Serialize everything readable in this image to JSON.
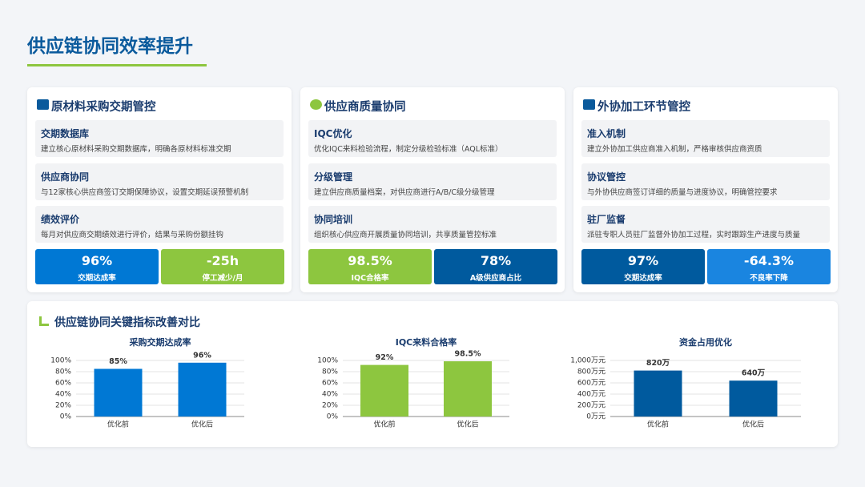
{
  "header": {
    "title": "供应链协同效率提升"
  },
  "cards": [
    {
      "title": "原材料采购交期管控",
      "items": [
        {
          "title": "交期数据库",
          "desc": "建立核心原材料采购交期数据库，明确各原材料标准交期"
        },
        {
          "title": "供应商协同",
          "desc": "与12家核心供应商签订交期保障协议，设置交期延误预警机制"
        },
        {
          "title": "绩效评价",
          "desc": "每月对供应商交期绩效进行评价，结果与采购份额挂钩"
        }
      ],
      "metrics": [
        {
          "value": "96%",
          "label": "交期达成率",
          "color": "#0078d4"
        },
        {
          "value": "-25h",
          "label": "停工减少/月",
          "color": "#8dc63f"
        }
      ]
    },
    {
      "title": "供应商质量协同",
      "items": [
        {
          "title": "IQC优化",
          "desc": "优化IQC来料检验流程，制定分级检验标准（AQL标准）"
        },
        {
          "title": "分级管理",
          "desc": "建立供应商质量档案，对供应商进行A/B/C级分级管理"
        },
        {
          "title": "协同培训",
          "desc": "组织核心供应商开展质量协同培训，共享质量管控标准"
        }
      ],
      "metrics": [
        {
          "value": "98.5%",
          "label": "IQC合格率",
          "color": "#8dc63f"
        },
        {
          "value": "78%",
          "label": "A级供应商占比",
          "color": "#005a9e"
        }
      ]
    },
    {
      "title": "外协加工环节管控",
      "items": [
        {
          "title": "准入机制",
          "desc": "建立外协加工供应商准入机制，严格审核供应商资质"
        },
        {
          "title": "协议管控",
          "desc": "与外协供应商签订详细的质量与进度协议，明确管控要求"
        },
        {
          "title": "驻厂监督",
          "desc": "派驻专职人员驻厂监督外协加工过程，实时跟踪生产进度与质量"
        }
      ],
      "metrics": [
        {
          "value": "97%",
          "label": "交期达成率",
          "color": "#005a9e"
        },
        {
          "value": "-64.3%",
          "label": "不良率下降",
          "color": "#1a85e0"
        }
      ]
    }
  ],
  "section_title": "供应链协同关键指标改善对比",
  "chart_data": [
    {
      "type": "bar",
      "title": "采购交期达成率",
      "categories": [
        "优化前",
        "优化后"
      ],
      "values": [
        85,
        96
      ],
      "value_labels": [
        "85%",
        "96%"
      ],
      "color": "#0078d4",
      "grid": true,
      "ylim": [
        0,
        100
      ],
      "yticks": [
        {
          "value": 0,
          "label": "0%"
        },
        {
          "value": 20,
          "label": "20%"
        },
        {
          "value": 40,
          "label": "40%"
        },
        {
          "value": 60,
          "label": "60%"
        },
        {
          "value": 80,
          "label": "80%"
        },
        {
          "value": 100,
          "label": "100%"
        }
      ]
    },
    {
      "type": "bar",
      "title": "IQC来料合格率",
      "categories": [
        "优化前",
        "优化后"
      ],
      "values": [
        92,
        98.5
      ],
      "value_labels": [
        "92%",
        "98.5%"
      ],
      "color": "#8dc63f",
      "grid": true,
      "ylim": [
        0,
        100
      ],
      "yticks": [
        {
          "value": 0,
          "label": "0%"
        },
        {
          "value": 20,
          "label": "20%"
        },
        {
          "value": 40,
          "label": "40%"
        },
        {
          "value": 60,
          "label": "60%"
        },
        {
          "value": 80,
          "label": "80%"
        },
        {
          "value": 100,
          "label": "100%"
        }
      ]
    },
    {
      "type": "bar",
      "title": "资金占用优化",
      "categories": [
        "优化前",
        "优化后"
      ],
      "values": [
        820,
        640
      ],
      "value_labels": [
        "820万",
        "640万"
      ],
      "color": "#005a9e",
      "grid": true,
      "ylim": [
        0,
        1000
      ],
      "yticks": [
        {
          "value": 0,
          "label": "0万元"
        },
        {
          "value": 200,
          "label": "200万元"
        },
        {
          "value": 400,
          "label": "400万元"
        },
        {
          "value": 600,
          "label": "600万元"
        },
        {
          "value": 800,
          "label": "800万元"
        },
        {
          "value": 1000,
          "label": "1,000万元"
        }
      ]
    }
  ]
}
